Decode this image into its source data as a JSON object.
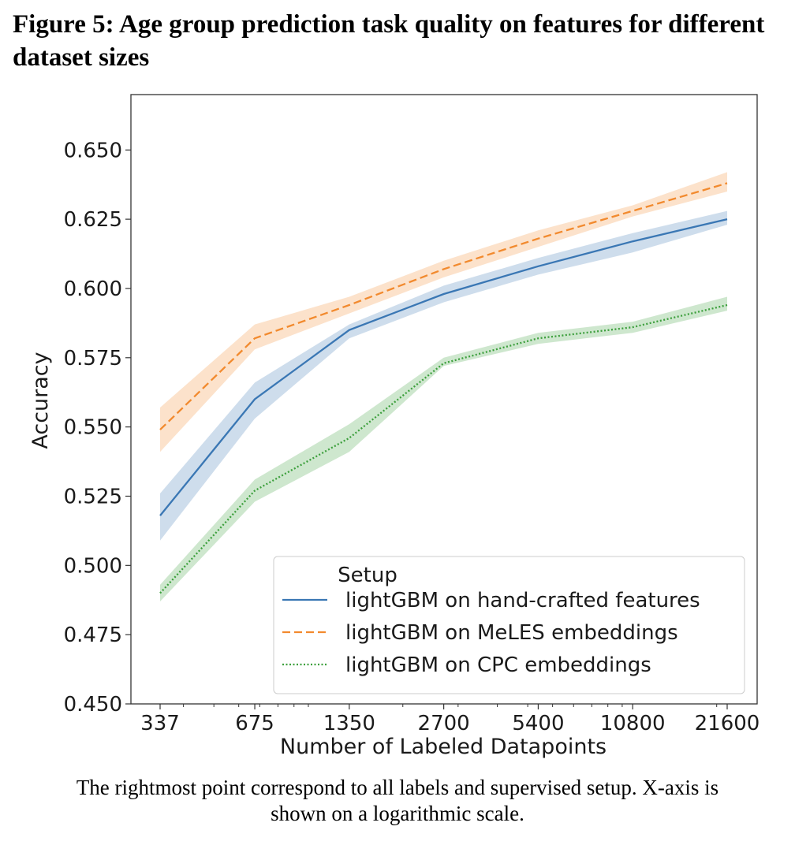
{
  "figure": {
    "title": "Figure 5: Age group prediction task quality on features for different dataset sizes",
    "caption_line1": "The rightmost point correspond to all labels and supervised setup. X-axis is",
    "caption_line2": "shown on a logarithmic scale."
  },
  "chart_data": {
    "type": "line",
    "x_scale": "log",
    "x": [
      337,
      675,
      1350,
      2700,
      5400,
      10800,
      21600
    ],
    "x_tick_labels": [
      "337",
      "675",
      "1350",
      "2700",
      "5400",
      "10800",
      "21600"
    ],
    "xlabel": "Number of Labeled Datapoints",
    "ylabel": "Accuracy",
    "ylim": [
      0.45,
      0.67
    ],
    "y_ticks": [
      0.45,
      0.475,
      0.5,
      0.525,
      0.55,
      0.575,
      0.6,
      0.625,
      0.65
    ],
    "y_tick_labels": [
      "0.450",
      "0.475",
      "0.500",
      "0.525",
      "0.550",
      "0.575",
      "0.600",
      "0.625",
      "0.650"
    ],
    "grid": false,
    "legend": {
      "title": "Setup",
      "placement": "lower-right"
    },
    "series": [
      {
        "name": "lightGBM on hand-crafted features",
        "color": "#3a77b4",
        "dash": "solid",
        "values": [
          0.518,
          0.56,
          0.585,
          0.598,
          0.608,
          0.617,
          0.625
        ],
        "ci_low": [
          0.509,
          0.553,
          0.582,
          0.595,
          0.605,
          0.613,
          0.623
        ],
        "ci_high": [
          0.526,
          0.566,
          0.587,
          0.601,
          0.611,
          0.62,
          0.628
        ]
      },
      {
        "name": "lightGBM on MeLES embeddings",
        "color": "#f28a2e",
        "dash": "dashed",
        "values": [
          0.549,
          0.582,
          0.594,
          0.607,
          0.618,
          0.628,
          0.638
        ],
        "ci_low": [
          0.541,
          0.578,
          0.591,
          0.604,
          0.615,
          0.626,
          0.635
        ],
        "ci_high": [
          0.557,
          0.587,
          0.597,
          0.61,
          0.621,
          0.63,
          0.642
        ]
      },
      {
        "name": "lightGBM on CPC embeddings",
        "color": "#3c9f3c",
        "dash": "dotted",
        "values": [
          0.49,
          0.527,
          0.546,
          0.573,
          0.582,
          0.586,
          0.594
        ],
        "ci_low": [
          0.487,
          0.523,
          0.541,
          0.572,
          0.58,
          0.584,
          0.592
        ],
        "ci_high": [
          0.493,
          0.531,
          0.551,
          0.575,
          0.584,
          0.588,
          0.597
        ]
      }
    ]
  }
}
